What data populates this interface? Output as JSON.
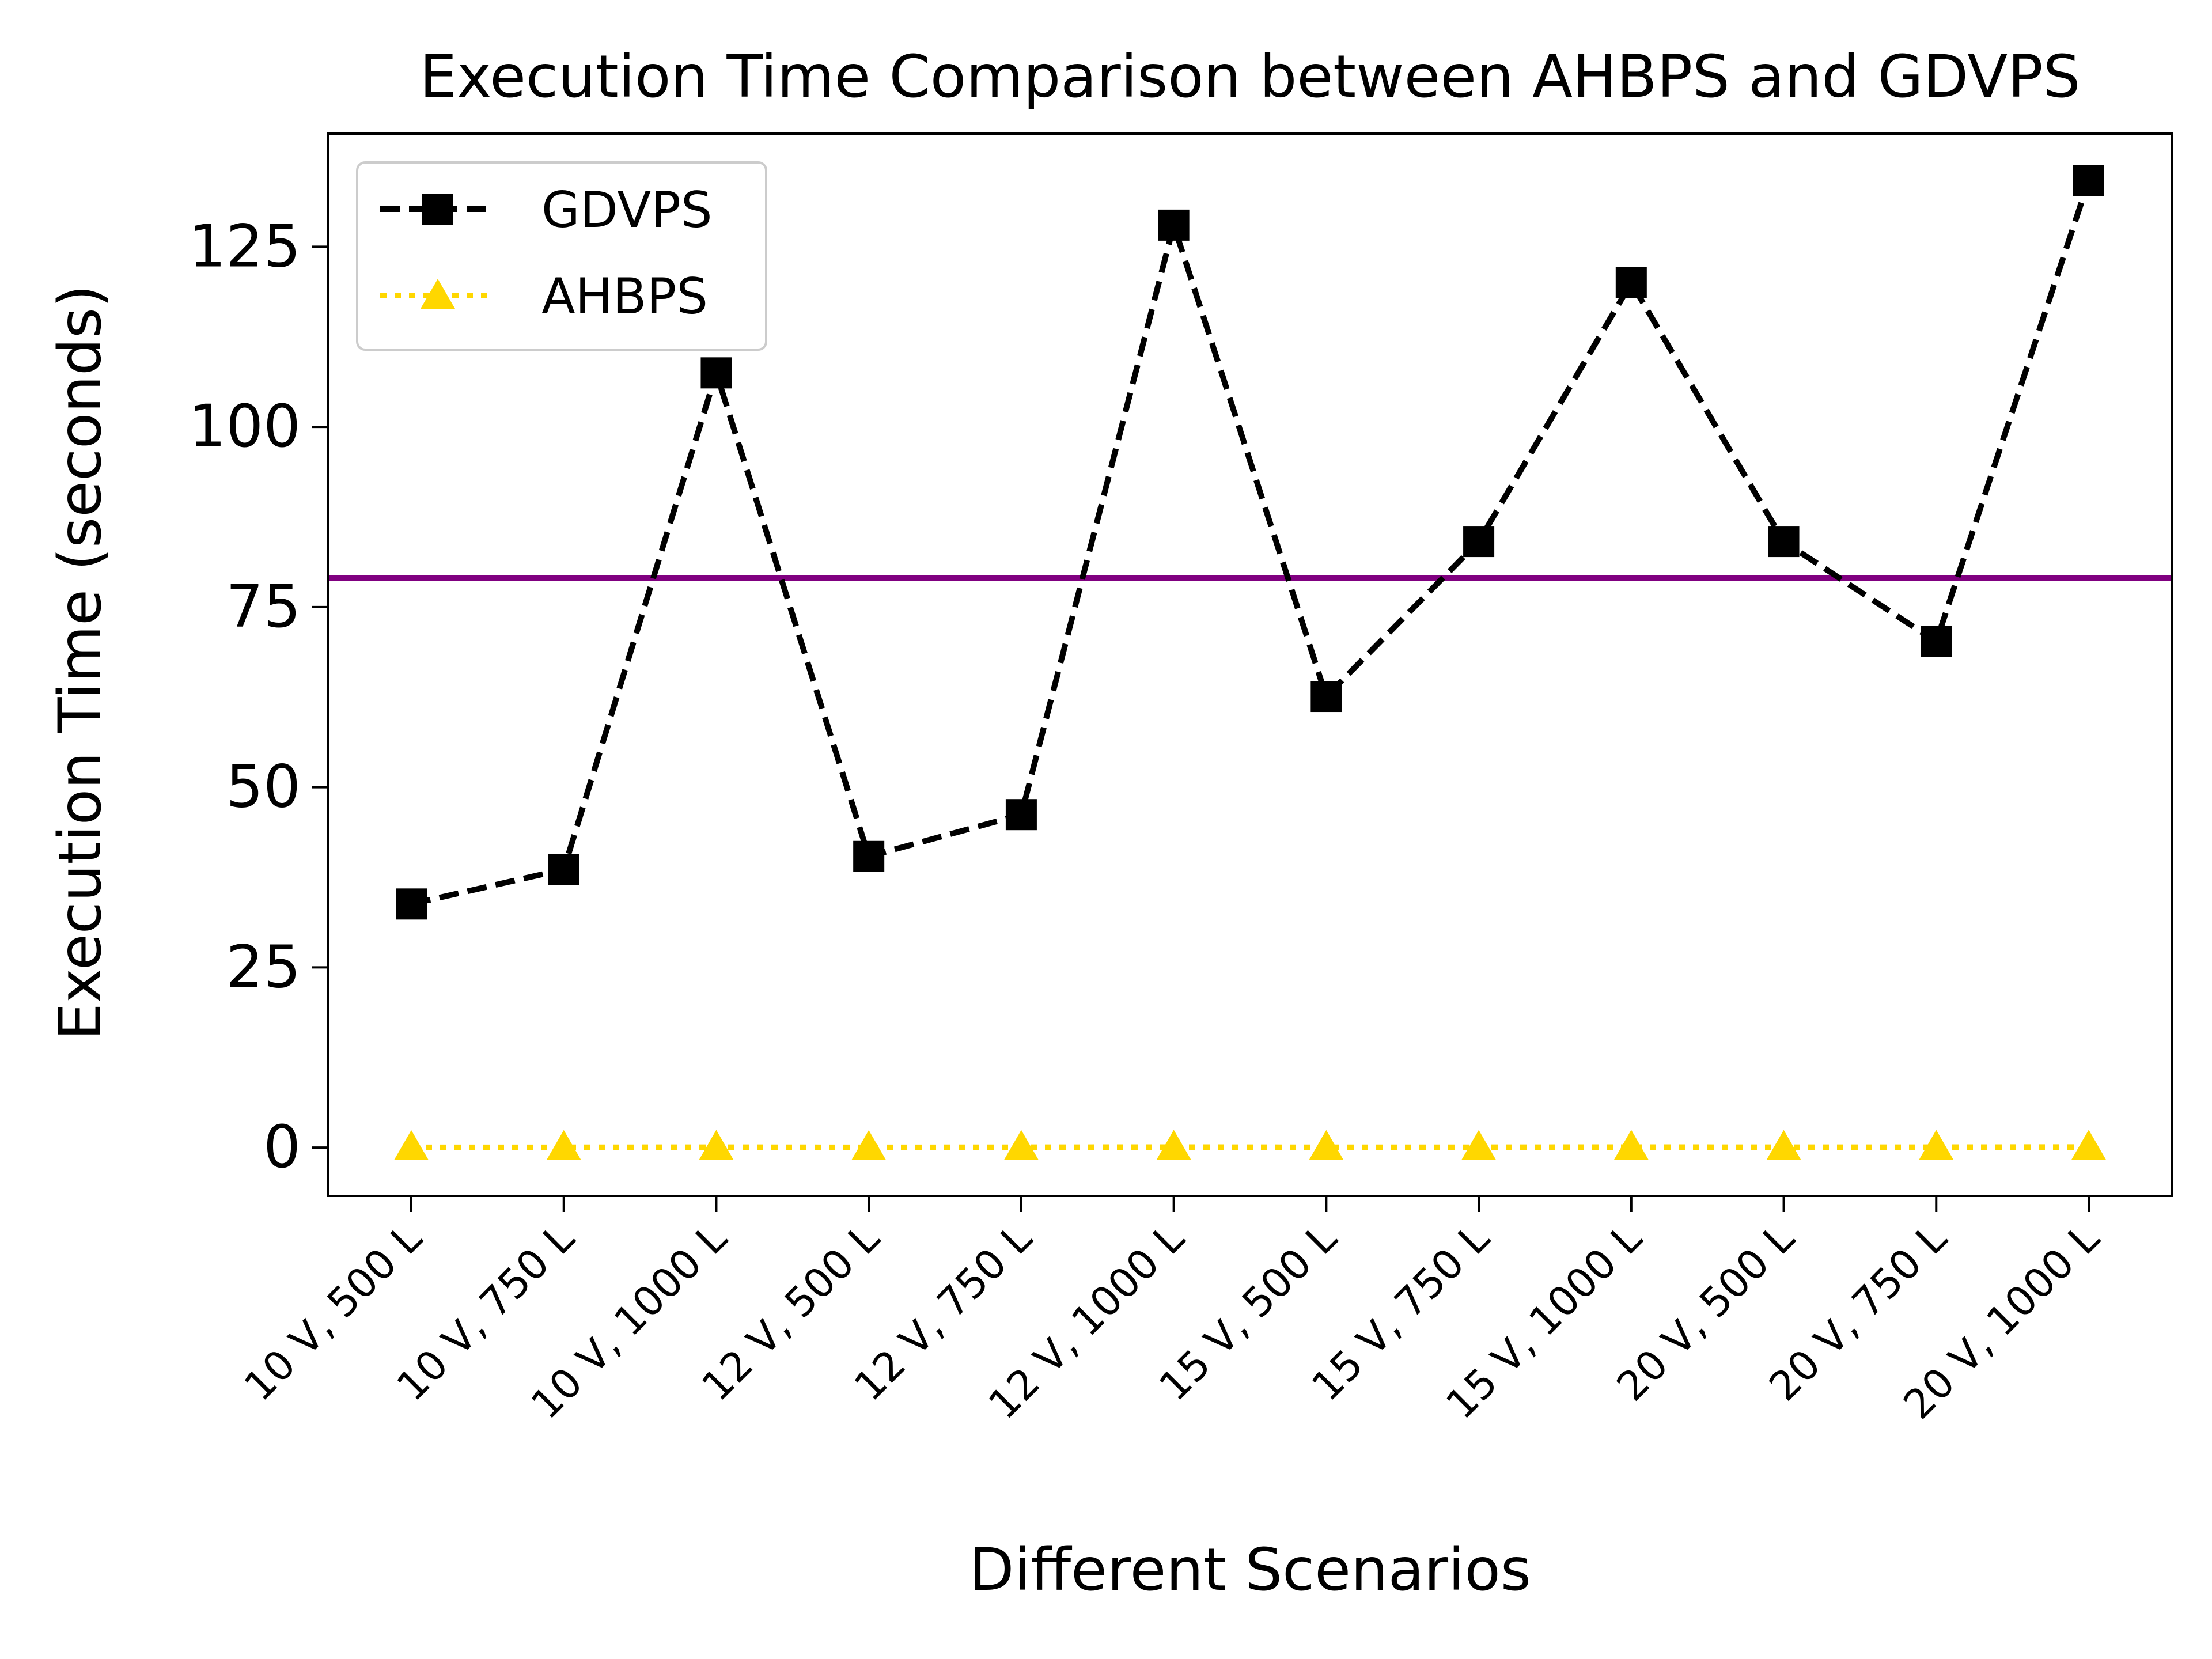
{
  "chart_data": {
    "type": "line",
    "title": "Execution Time Comparison between AHBPS and GDVPS",
    "xlabel": "Different Scenarios",
    "ylabel": "Execution Time (seconds)",
    "ylim": [
      -6.7,
      140.7
    ],
    "yticks": [
      0,
      25,
      50,
      75,
      100,
      125
    ],
    "grid": false,
    "legend_position": "top-left",
    "categories": [
      "10 V, 500 L",
      "10 V, 750 L",
      "10 V, 1000 L",
      "12 V, 500 L",
      "12 V, 750 L",
      "12 V, 1000 L",
      "15 V, 500 L",
      "15 V, 750 L",
      "15 V, 1000 L",
      "20 V, 500 L",
      "20 V, 750 L",
      "20 V, 1000 L"
    ],
    "series": [
      {
        "name": "GDVPS",
        "color": "#000000",
        "line_style": "dashed",
        "marker": "square",
        "values": [
          33.8,
          38.6,
          107.5,
          40.4,
          46.2,
          128.0,
          62.6,
          84.1,
          120.0,
          84.1,
          70.2,
          134.2
        ]
      },
      {
        "name": "AHBPS",
        "color": "#ffd700",
        "line_style": "dotted",
        "marker": "triangle",
        "values": [
          0.02,
          0.03,
          0.05,
          0.02,
          0.04,
          0.06,
          0.03,
          0.04,
          0.06,
          0.04,
          0.05,
          0.07
        ]
      }
    ],
    "reference_line": {
      "y": 79.0,
      "color": "#800080"
    }
  }
}
